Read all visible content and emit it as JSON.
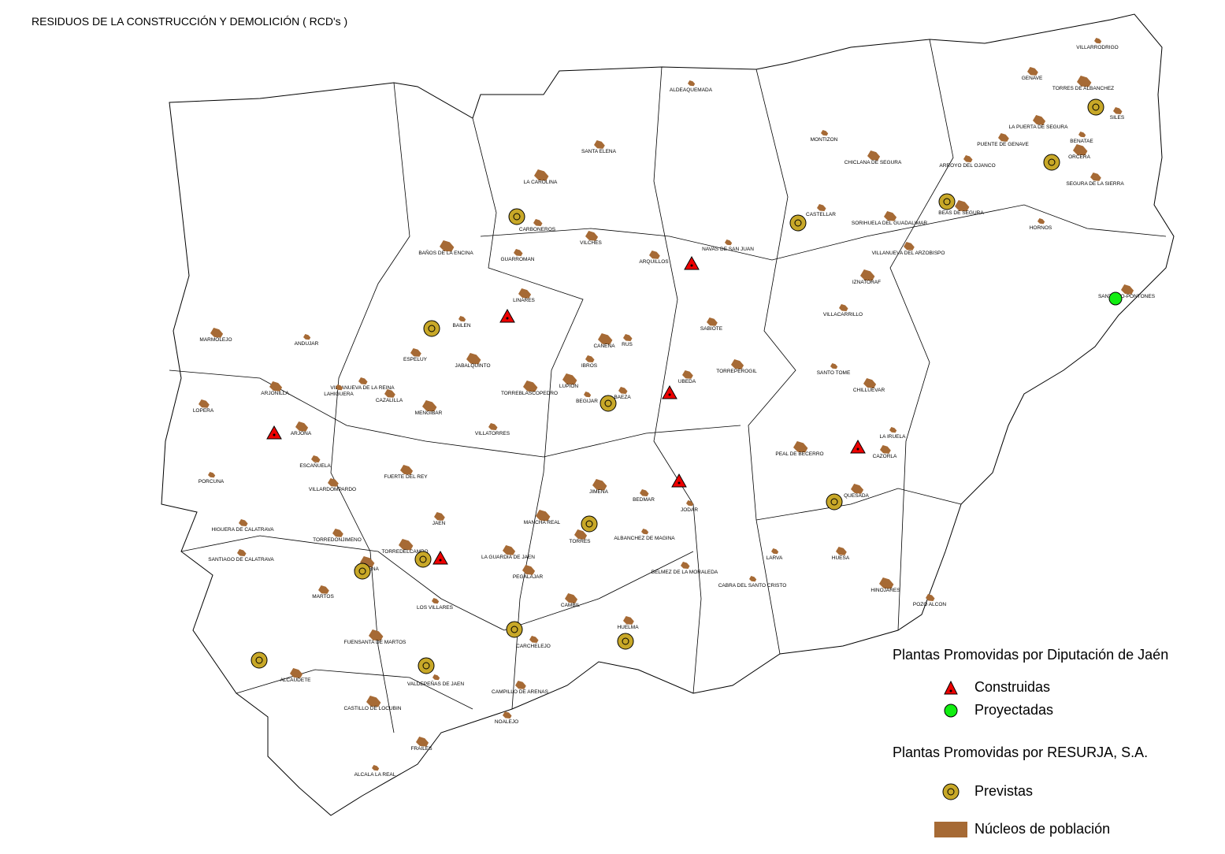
{
  "title": "RESIDUOS DE LA CONSTRUCCIÓN Y DEMOLICIÓN ( RCD's )",
  "towns": [
    "VILLARRODRIGO",
    "GENAVE",
    "TORRES DE ALBANCHEZ",
    "SILES",
    "LA PUERTA DE SEGURA",
    "BENATAE",
    "PUENTE DE GENAVE",
    "ORCERA",
    "ARROYO DEL OJANCO",
    "CHICLANA DE SEGURA",
    "MONTIZON",
    "SEGURA DE LA SIERRA",
    "BEAS DE SEGURA",
    "CASTELLAR",
    "SORIHUELA DEL GUADALIMAR",
    "HORNOS",
    "VILLANUEVA DEL ARZOBISPO",
    "IZNATORAF",
    "VILLACARRILLO",
    "SANTIAGO-PONTONES",
    "ALDEAQUEMADA",
    "SANTA ELENA",
    "LA CAROLINA",
    "CARBONEROS",
    "VILCHES",
    "NAVAS DE SAN JUAN",
    "ARQUILLOS",
    "BAÑOS DE LA ENCINA",
    "GUARROMAN",
    "LINARES",
    "BAILEN",
    "SABIOTE",
    "CANENA",
    "RUS",
    "MARMOLEJO",
    "ANDUJAR",
    "ESPELUY",
    "JABALQUINTO",
    "IBROS",
    "TORREPEROGIL",
    "SANTO TOME",
    "UBEDA",
    "LUPION",
    "VILLANUEVA DE LA REINA",
    "ARJONILLA",
    "LAHIGUERA",
    "CAZALILLA",
    "TORREBLASCOPEDRO",
    "BAEZA",
    "CHILLUEVAR",
    "BEGIJAR",
    "LOPERA",
    "MENGIBAR",
    "VILLATORRES",
    "ARJONA",
    "LA IRUELA",
    "CAZORLA",
    "PEAL DE BECERRO",
    "ESCAÑUELA",
    "FUERTE DEL REY",
    "PORCUNA",
    "VILLARDOMPARDO",
    "JIMENA",
    "BEDMAR",
    "QUESADA",
    "JODAR",
    "JAEN",
    "MANCHA REAL",
    "HIGUERA DE CALATRAVA",
    "TORRES",
    "ALBANCHEZ DE MAGINA",
    "TORREDONJIMENO",
    "TORREDELCAMPO",
    "SANTIAGO DE CALATRAVA",
    "LA GUARDIA DE JAEN",
    "LARVA",
    "HUESA",
    "JAMILENA",
    "BELMEZ DE LA MORALEDA",
    "PEGALAJAR",
    "CABRA DEL SANTO CRISTO",
    "MARTOS",
    "HINOJARES",
    "POZO ALCON",
    "CAMBIL",
    "LOS VILLARES",
    "HUELMA",
    "FUENSANTA DE MARTOS",
    "CARCHELEJO",
    "ALCAUDETE",
    "VALDEPEÑAS DE JAEN",
    "CAMPILLO DE ARENAS",
    "CASTILLO DE LOCUBIN",
    "NOALEJO",
    "FRAILES",
    "ALCALA LA REAL"
  ],
  "legend": {
    "diputacion": "Plantas Promovidas por Diputación de Jaén",
    "construidas": "Construidas",
    "proyectadas": "Proyectadas",
    "resurja": "Plantas Promovidas por RESURJA, S.A.",
    "previstas": "Previstas",
    "nucleos": "Núcleos de población"
  }
}
